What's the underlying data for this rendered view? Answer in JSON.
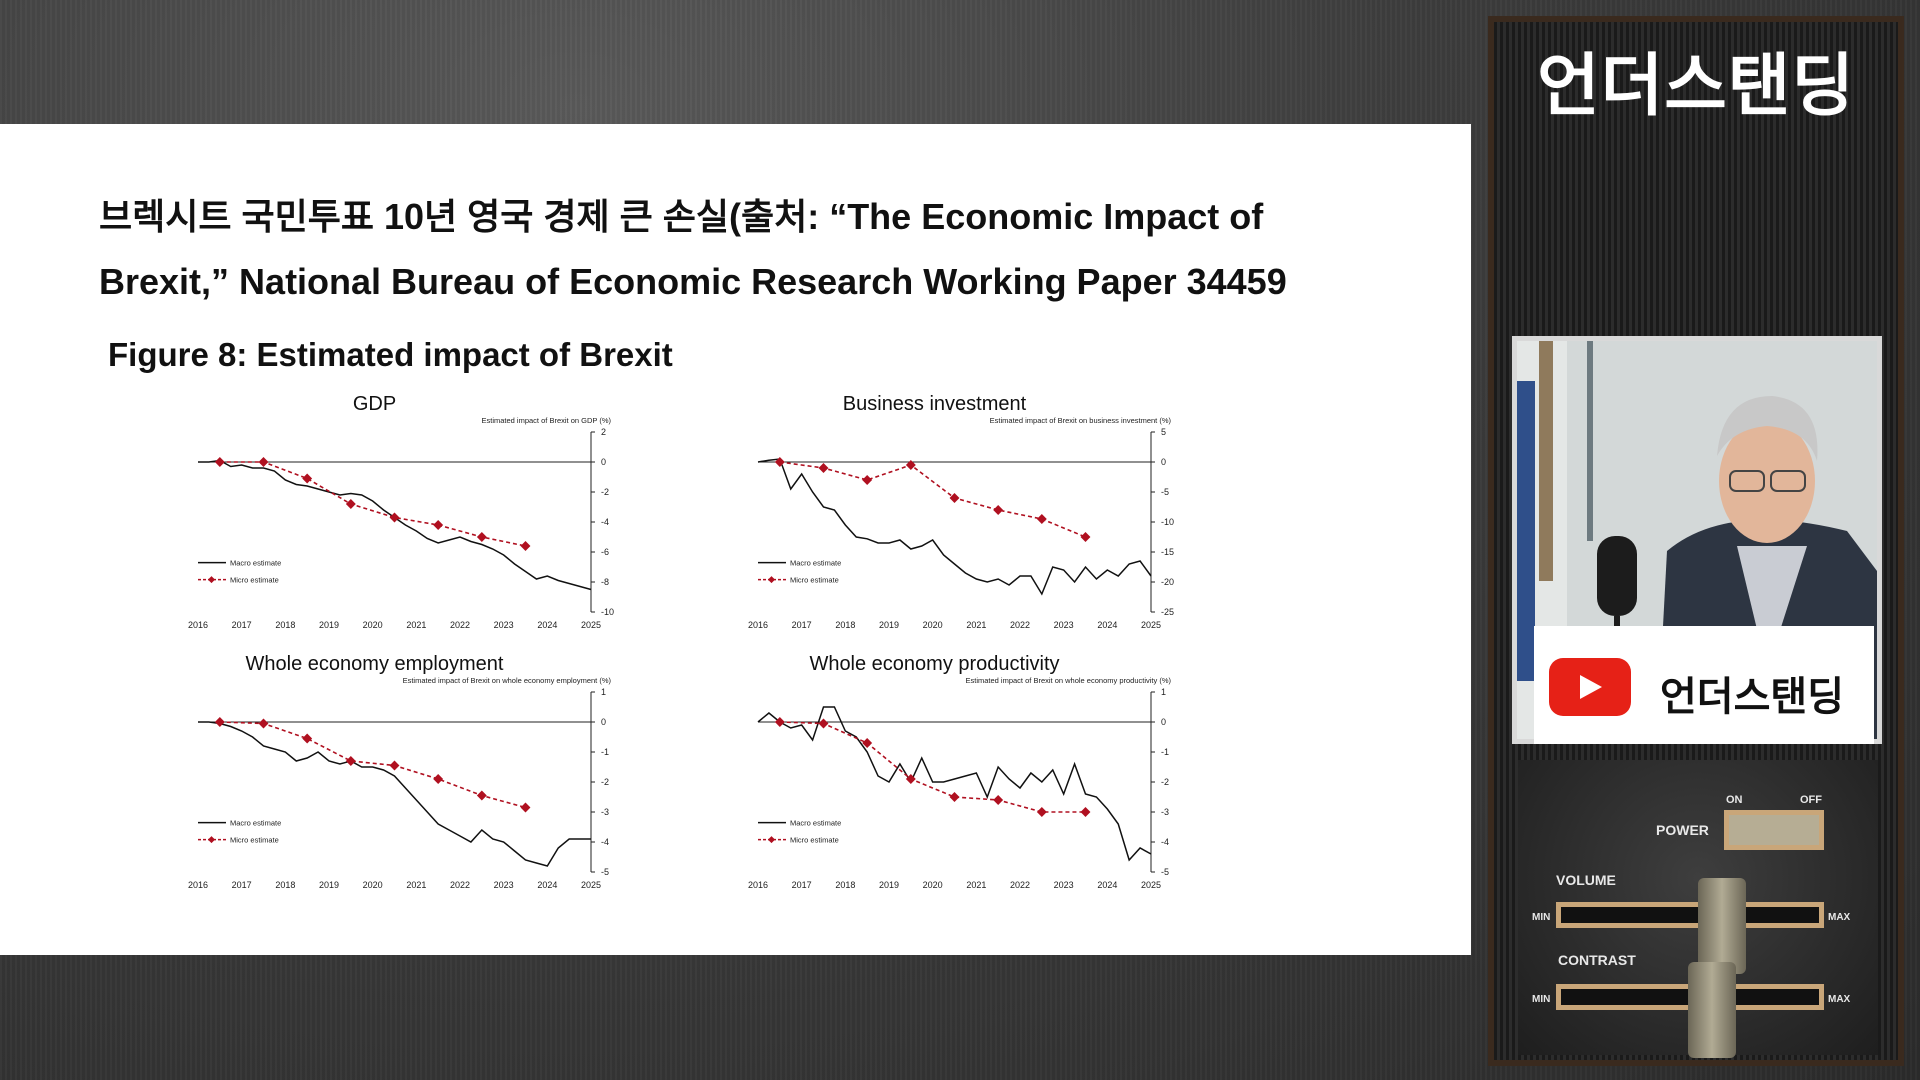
{
  "slide": {
    "title": "브렉시트 국민투표 10년 영국 경제 큰 손실(출처: “The Economic Impact of Brexit,” National Bureau of Economic Research Working Paper 34459",
    "figure_title": "Figure 8: Estimated impact of Brexit"
  },
  "channel": {
    "name": "언더스탠딩",
    "yt_label": "언더스탠딩",
    "power_label": "POWER",
    "on_label": "ON",
    "off_label": "OFF",
    "volume_label": "VOLUME",
    "contrast_label": "CONTRAST",
    "min_label": "MIN",
    "max_label": "MAX"
  },
  "colors": {
    "macro": "#111111",
    "micro": "#b01020"
  },
  "chart_data": [
    {
      "type": "line",
      "title": "GDP",
      "ylabel": "Estimated impact of Brexit on GDP (%)",
      "ylim": [
        -10,
        2
      ],
      "yticks": [
        2,
        0,
        -2,
        -4,
        -6,
        -8,
        -10
      ],
      "xlim": [
        2016,
        2025
      ],
      "xticks": [
        2016,
        2017,
        2018,
        2019,
        2020,
        2021,
        2022,
        2023,
        2024,
        2025
      ],
      "legend": [
        "Macro estimate",
        "Micro estimate"
      ],
      "legend_position": "lower-left",
      "series": [
        {
          "name": "Macro estimate",
          "x": [
            2016.0,
            2016.25,
            2016.5,
            2016.75,
            2017.0,
            2017.25,
            2017.5,
            2017.75,
            2018.0,
            2018.25,
            2018.5,
            2018.75,
            2019.0,
            2019.25,
            2019.5,
            2019.75,
            2020.0,
            2020.25,
            2020.5,
            2020.75,
            2021.0,
            2021.25,
            2021.5,
            2021.75,
            2022.0,
            2022.25,
            2022.5,
            2022.75,
            2023.0,
            2023.25,
            2023.5,
            2023.75,
            2024.0,
            2024.25,
            2024.5,
            2024.75,
            2025.0
          ],
          "y": [
            0,
            0,
            0.1,
            -0.3,
            -0.2,
            -0.4,
            -0.4,
            -0.6,
            -1.2,
            -1.5,
            -1.6,
            -1.8,
            -2.0,
            -2.2,
            -2.1,
            -2.2,
            -2.6,
            -3.2,
            -3.7,
            -4.2,
            -4.6,
            -5.1,
            -5.4,
            -5.2,
            -5.0,
            -5.3,
            -5.5,
            -5.8,
            -6.2,
            -6.8,
            -7.3,
            -7.8,
            -7.6,
            -7.9,
            -8.1,
            -8.3,
            -8.5
          ]
        },
        {
          "name": "Micro estimate",
          "x": [
            2016.5,
            2017.5,
            2018.5,
            2019.5,
            2020.5,
            2021.5,
            2022.5,
            2023.5
          ],
          "y": [
            0,
            0,
            -1.1,
            -2.8,
            -3.7,
            -4.2,
            -5.0,
            -5.6
          ]
        }
      ]
    },
    {
      "type": "line",
      "title": "Business investment",
      "ylabel": "Estimated impact of Brexit on business investment (%)",
      "ylim": [
        -25,
        5
      ],
      "yticks": [
        5,
        0,
        -5,
        -10,
        -15,
        -20,
        -25
      ],
      "xlim": [
        2016,
        2025
      ],
      "xticks": [
        2016,
        2017,
        2018,
        2019,
        2020,
        2021,
        2022,
        2023,
        2024,
        2025
      ],
      "legend": [
        "Macro estimate",
        "Micro estimate"
      ],
      "legend_position": "lower-left",
      "series": [
        {
          "name": "Macro estimate",
          "x": [
            2016.0,
            2016.25,
            2016.5,
            2016.75,
            2017.0,
            2017.25,
            2017.5,
            2017.75,
            2018.0,
            2018.25,
            2018.5,
            2018.75,
            2019.0,
            2019.25,
            2019.5,
            2019.75,
            2020.0,
            2020.25,
            2020.5,
            2020.75,
            2021.0,
            2021.25,
            2021.5,
            2021.75,
            2022.0,
            2022.25,
            2022.5,
            2022.75,
            2023.0,
            2023.25,
            2023.5,
            2023.75,
            2024.0,
            2024.25,
            2024.5,
            2024.75,
            2025.0
          ],
          "y": [
            0,
            0.3,
            0.5,
            -4.5,
            -2.0,
            -5.0,
            -7.5,
            -8.0,
            -10.5,
            -12.5,
            -12.8,
            -13.5,
            -13.5,
            -13.0,
            -14.5,
            -14.0,
            -13.0,
            -15.5,
            -17.0,
            -18.5,
            -19.5,
            -20.0,
            -19.5,
            -20.5,
            -19.0,
            -19.0,
            -22.0,
            -17.5,
            -18.0,
            -20.0,
            -17.5,
            -19.5,
            -18.0,
            -19.0,
            -17.0,
            -16.5,
            -19.0
          ]
        },
        {
          "name": "Micro estimate",
          "x": [
            2016.5,
            2017.5,
            2018.5,
            2019.5,
            2020.5,
            2021.5,
            2022.5,
            2023.5
          ],
          "y": [
            0,
            -1.0,
            -3.0,
            -0.5,
            -6.0,
            -8.0,
            -9.5,
            -12.5
          ]
        }
      ]
    },
    {
      "type": "line",
      "title": "Whole economy employment",
      "ylabel": "Estimated impact of Brexit on whole economy employment (%)",
      "ylim": [
        -5,
        1
      ],
      "yticks": [
        1,
        0,
        -1,
        -2,
        -3,
        -4,
        -5
      ],
      "xlim": [
        2016,
        2025
      ],
      "xticks": [
        2016,
        2017,
        2018,
        2019,
        2020,
        2021,
        2022,
        2023,
        2024,
        2025
      ],
      "legend": [
        "Macro estimate",
        "Micro estimate"
      ],
      "legend_position": "lower-left",
      "series": [
        {
          "name": "Macro estimate",
          "x": [
            2016.0,
            2016.25,
            2016.5,
            2016.75,
            2017.0,
            2017.25,
            2017.5,
            2017.75,
            2018.0,
            2018.25,
            2018.5,
            2018.75,
            2019.0,
            2019.25,
            2019.5,
            2019.75,
            2020.0,
            2020.25,
            2020.5,
            2020.75,
            2021.0,
            2021.25,
            2021.5,
            2021.75,
            2022.0,
            2022.25,
            2022.5,
            2022.75,
            2023.0,
            2023.25,
            2023.5,
            2023.75,
            2024.0,
            2024.25,
            2024.5,
            2024.75,
            2025.0
          ],
          "y": [
            0,
            0,
            -0.05,
            -0.15,
            -0.3,
            -0.5,
            -0.8,
            -0.9,
            -1.0,
            -1.3,
            -1.2,
            -1.0,
            -1.3,
            -1.4,
            -1.3,
            -1.5,
            -1.5,
            -1.6,
            -1.8,
            -2.2,
            -2.6,
            -3.0,
            -3.4,
            -3.6,
            -3.8,
            -4.0,
            -3.6,
            -3.9,
            -4.0,
            -4.3,
            -4.6,
            -4.7,
            -4.8,
            -4.2,
            -3.9,
            -3.9,
            -3.9
          ]
        },
        {
          "name": "Micro estimate",
          "x": [
            2016.5,
            2017.5,
            2018.5,
            2019.5,
            2020.5,
            2021.5,
            2022.5,
            2023.5
          ],
          "y": [
            0,
            -0.05,
            -0.55,
            -1.3,
            -1.45,
            -1.9,
            -2.45,
            -2.85
          ]
        }
      ]
    },
    {
      "type": "line",
      "title": "Whole economy productivity",
      "ylabel": "Estimated impact of Brexit on whole economy productivity (%)",
      "ylim": [
        -5,
        1
      ],
      "yticks": [
        1,
        0,
        -1,
        -2,
        -3,
        -4,
        -5
      ],
      "xlim": [
        2016,
        2025
      ],
      "xticks": [
        2016,
        2017,
        2018,
        2019,
        2020,
        2021,
        2022,
        2023,
        2024,
        2025
      ],
      "legend": [
        "Macro estimate",
        "Micro estimate"
      ],
      "legend_position": "lower-left",
      "series": [
        {
          "name": "Macro estimate",
          "x": [
            2016.0,
            2016.25,
            2016.5,
            2016.75,
            2017.0,
            2017.25,
            2017.5,
            2017.75,
            2018.0,
            2018.25,
            2018.5,
            2018.75,
            2019.0,
            2019.25,
            2019.5,
            2019.75,
            2020.0,
            2020.25,
            2020.5,
            2020.75,
            2021.0,
            2021.25,
            2021.5,
            2021.75,
            2022.0,
            2022.25,
            2022.5,
            2022.75,
            2023.0,
            2023.25,
            2023.5,
            2023.75,
            2024.0,
            2024.25,
            2024.5,
            2024.75,
            2025.0
          ],
          "y": [
            0,
            0.3,
            0.0,
            -0.2,
            -0.1,
            -0.6,
            0.5,
            0.5,
            -0.3,
            -0.5,
            -1.0,
            -1.8,
            -2.0,
            -1.4,
            -2.0,
            -1.2,
            -2.0,
            -2.0,
            -1.9,
            -1.8,
            -1.7,
            -2.5,
            -1.5,
            -1.9,
            -2.2,
            -1.7,
            -2.0,
            -1.6,
            -2.4,
            -1.4,
            -2.4,
            -2.5,
            -2.9,
            -3.4,
            -4.6,
            -4.2,
            -4.4
          ]
        },
        {
          "name": "Micro estimate",
          "x": [
            2016.5,
            2017.5,
            2018.5,
            2019.5,
            2020.5,
            2021.5,
            2022.5,
            2023.5
          ],
          "y": [
            0,
            -0.05,
            -0.7,
            -1.9,
            -2.5,
            -2.6,
            -3.0,
            -3.0
          ]
        }
      ]
    }
  ]
}
